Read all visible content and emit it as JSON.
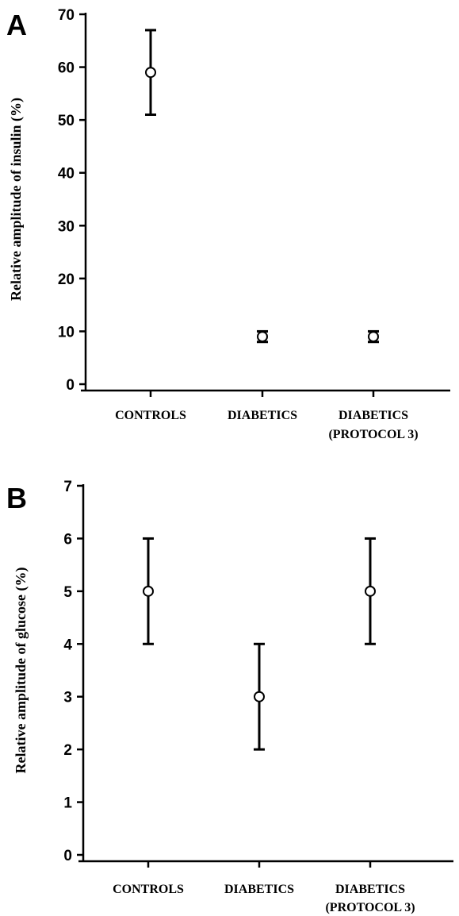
{
  "chart_data": [
    {
      "type": "scatter",
      "panel_label": "A",
      "categories": [
        "CONTROLS",
        "DIABETICS",
        "DIABETICS\n(PROTOCOL 3)"
      ],
      "values": [
        59,
        9,
        9
      ],
      "error_low": [
        51,
        8,
        8
      ],
      "error_high": [
        67,
        10,
        10
      ],
      "yticks": [
        0,
        10,
        20,
        30,
        40,
        50,
        60,
        70
      ],
      "ylim": [
        0,
        70
      ],
      "ylabel": "Relative amplitude of insulin (%)",
      "xlabel": "",
      "grid": false
    },
    {
      "type": "scatter",
      "panel_label": "B",
      "categories": [
        "CONTROLS",
        "DIABETICS",
        "DIABETICS\n(PROTOCOL 3)"
      ],
      "values": [
        5,
        3,
        5
      ],
      "error_low": [
        4,
        2,
        4
      ],
      "error_high": [
        6,
        4,
        6
      ],
      "yticks": [
        0,
        1,
        2,
        3,
        4,
        5,
        6,
        7
      ],
      "ylim": [
        0,
        7
      ],
      "ylabel": "Relative amplitude of glucose (%)",
      "xlabel": "",
      "grid": false
    }
  ]
}
